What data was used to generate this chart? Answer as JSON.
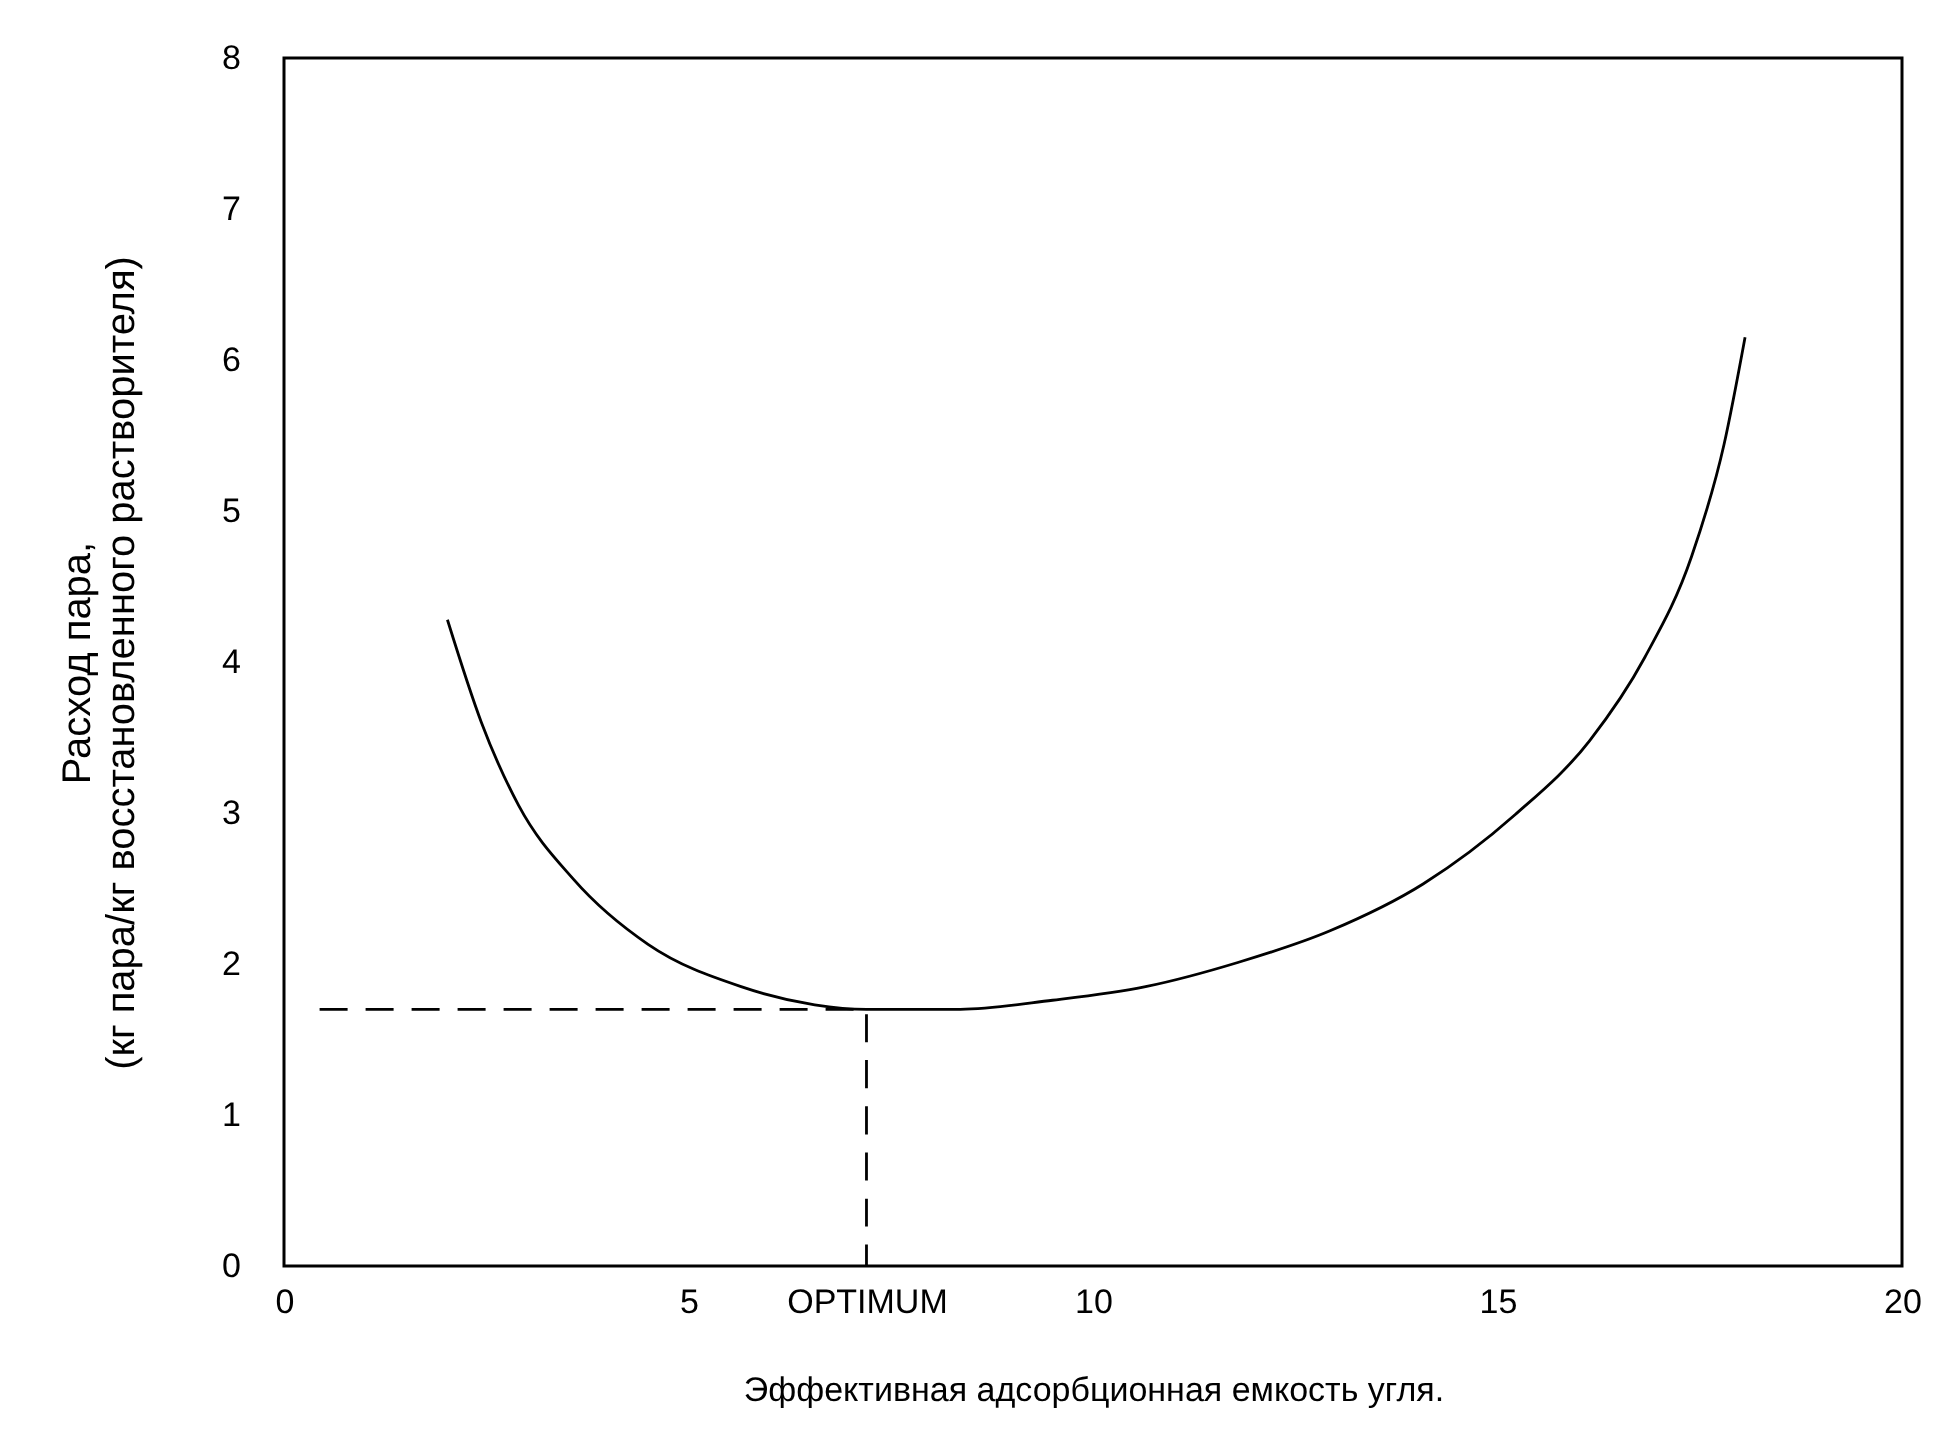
{
  "chart_data": {
    "type": "line",
    "xlabel": "Эффективная адсорбционная емкость угля.",
    "ylabel": "Расход пара,\n(кг пара/кг восстановленного растворителя)",
    "xlim": [
      0,
      20
    ],
    "ylim": [
      0,
      8
    ],
    "xticks": [
      0,
      5,
      {
        "value": 7.2,
        "label": "OPTIMUM"
      },
      10,
      15,
      20
    ],
    "yticks": [
      0,
      1,
      2,
      3,
      4,
      5,
      6,
      7,
      8
    ],
    "grid": false,
    "series": [
      {
        "color": "#000000",
        "line_style": "solid",
        "x": [
          2.02,
          2.44,
          2.9,
          3.58,
          4.5,
          5.65,
          6.56,
          7.2,
          8.36,
          9.5,
          10.65,
          11.79,
          12.93,
          14.08,
          15.22,
          16.14,
          16.82,
          17.4,
          17.8,
          18.06
        ],
        "values": [
          4.28,
          3.6,
          3.05,
          2.56,
          2.13,
          1.85,
          1.73,
          1.7,
          1.7,
          1.76,
          1.85,
          2.01,
          2.22,
          2.53,
          2.99,
          3.48,
          4.03,
          4.7,
          5.44,
          6.15
        ]
      },
      {
        "color": "#000000",
        "line_style": "dashed",
        "x": [
          0.44,
          7.2,
          7.2
        ],
        "values": [
          1.7,
          1.7,
          0
        ]
      }
    ]
  }
}
